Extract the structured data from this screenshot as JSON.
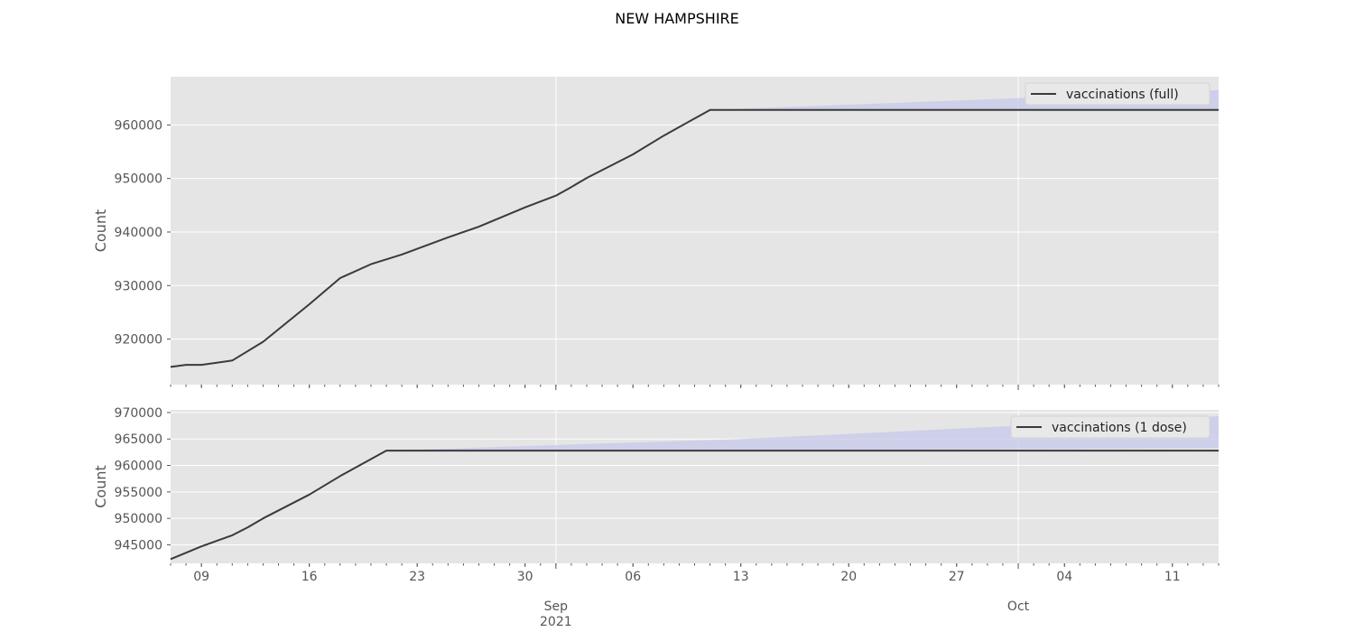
{
  "title": "NEW HAMPSHIRE",
  "colors": {
    "axes_bg": "#e5e5e5",
    "grid": "#ffffff",
    "line": "#3a3a3a",
    "band": "#c5c8ea",
    "tick_text": "#555555"
  },
  "x_axis": {
    "start": "2021-08-07",
    "end": "2021-10-14",
    "minor_tick_labels": [
      {
        "date": "2021-08-09",
        "label": "09"
      },
      {
        "date": "2021-08-16",
        "label": "16"
      },
      {
        "date": "2021-08-23",
        "label": "23"
      },
      {
        "date": "2021-08-30",
        "label": "30"
      },
      {
        "date": "2021-09-06",
        "label": "06"
      },
      {
        "date": "2021-09-13",
        "label": "13"
      },
      {
        "date": "2021-09-20",
        "label": "20"
      },
      {
        "date": "2021-09-27",
        "label": "27"
      },
      {
        "date": "2021-10-04",
        "label": "04"
      },
      {
        "date": "2021-10-11",
        "label": "11"
      }
    ],
    "major_tick_labels": [
      {
        "date": "2021-09-01",
        "label": "Sep",
        "sublabel": "2021"
      },
      {
        "date": "2021-10-01",
        "label": "Oct",
        "sublabel": ""
      }
    ]
  },
  "chart_data": [
    {
      "type": "line",
      "ylabel": "Count",
      "ylim": [
        911500,
        969000
      ],
      "yticks": [
        920000,
        930000,
        940000,
        950000,
        960000
      ],
      "legend": "top-right",
      "grid": true,
      "series": [
        {
          "name": "vaccinations (full)",
          "points": [
            [
              "2021-08-07",
              914800
            ],
            [
              "2021-08-08",
              915200
            ],
            [
              "2021-08-09",
              915200
            ],
            [
              "2021-08-10",
              915600
            ],
            [
              "2021-08-11",
              916000
            ],
            [
              "2021-08-13",
              919500
            ],
            [
              "2021-08-16",
              926500
            ],
            [
              "2021-08-18",
              931400
            ],
            [
              "2021-08-20",
              934000
            ],
            [
              "2021-08-22",
              935800
            ],
            [
              "2021-08-25",
              939000
            ],
            [
              "2021-08-27",
              941000
            ],
            [
              "2021-08-30",
              944600
            ],
            [
              "2021-09-01",
              946800
            ],
            [
              "2021-09-02",
              948400
            ],
            [
              "2021-09-03",
              950100
            ],
            [
              "2021-09-06",
              954500
            ],
            [
              "2021-09-08",
              958000
            ],
            [
              "2021-09-09",
              959600
            ],
            [
              "2021-09-11",
              962800
            ],
            [
              "2021-10-14",
              962800
            ]
          ]
        }
      ],
      "forecast_band": {
        "points": [
          [
            "2021-09-11",
            962800,
            962800
          ],
          [
            "2021-10-01",
            962800,
            965000
          ],
          [
            "2021-10-14",
            962800,
            966500
          ]
        ]
      }
    },
    {
      "type": "line",
      "ylabel": "Count",
      "ylim": [
        941500,
        970500
      ],
      "yticks": [
        945000,
        950000,
        955000,
        960000,
        965000,
        970000
      ],
      "legend": "top-right",
      "grid": true,
      "series": [
        {
          "name": "vaccinations (1 dose)",
          "points": [
            [
              "2021-08-07",
              942300
            ],
            [
              "2021-08-09",
              944700
            ],
            [
              "2021-08-11",
              946800
            ],
            [
              "2021-08-12",
              948300
            ],
            [
              "2021-08-13",
              950000
            ],
            [
              "2021-08-16",
              954500
            ],
            [
              "2021-08-18",
              958000
            ],
            [
              "2021-08-19",
              959600
            ],
            [
              "2021-08-21",
              962800
            ],
            [
              "2021-10-14",
              962800
            ]
          ]
        }
      ],
      "forecast_band": {
        "points": [
          [
            "2021-08-21",
            962800,
            962800
          ],
          [
            "2021-09-13",
            962800,
            965000
          ],
          [
            "2021-10-14",
            963300,
            969300
          ]
        ]
      }
    }
  ]
}
